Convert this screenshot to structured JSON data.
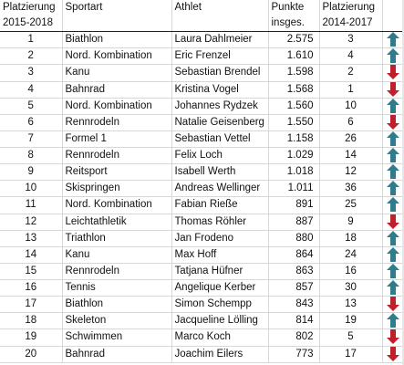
{
  "colors": {
    "up": "#2f7d8c",
    "down": "#c0202a",
    "grid": "#d7d7d7"
  },
  "headers": {
    "rank_line1": "Platzierung",
    "rank_line2": "2015-2018",
    "sport": "Sportart",
    "athlete": "Athlet",
    "points_line1": "Punkte",
    "points_line2": "insges.",
    "prev_line1": "Platzierung",
    "prev_line2": "2014-2017"
  },
  "rows": [
    {
      "rank": "1",
      "sport": "Biathlon",
      "athlete": "Laura Dahlmeier",
      "points": "2.575",
      "prev": "3",
      "trend": "up"
    },
    {
      "rank": "2",
      "sport": "Nord. Kombination",
      "athlete": "Eric Frenzel",
      "points": "1.610",
      "prev": "4",
      "trend": "up"
    },
    {
      "rank": "3",
      "sport": "Kanu",
      "athlete": "Sebastian Brendel",
      "points": "1.598",
      "prev": "2",
      "trend": "down"
    },
    {
      "rank": "4",
      "sport": "Bahnrad",
      "athlete": "Kristina Vogel",
      "points": "1.568",
      "prev": "1",
      "trend": "down"
    },
    {
      "rank": "5",
      "sport": "Nord. Kombination",
      "athlete": "Johannes Rydzek",
      "points": "1.560",
      "prev": "10",
      "trend": "up"
    },
    {
      "rank": "6",
      "sport": "Rennrodeln",
      "athlete": "Natalie Geisenberg",
      "points": "1.550",
      "prev": "6",
      "trend": "down"
    },
    {
      "rank": "7",
      "sport": "Formel 1",
      "athlete": "Sebastian Vettel",
      "points": "1.158",
      "prev": "26",
      "trend": "up"
    },
    {
      "rank": "8",
      "sport": "Rennrodeln",
      "athlete": "Felix Loch",
      "points": "1.029",
      "prev": "14",
      "trend": "up"
    },
    {
      "rank": "9",
      "sport": "Reitsport",
      "athlete": "Isabell Werth",
      "points": "1.018",
      "prev": "12",
      "trend": "up"
    },
    {
      "rank": "10",
      "sport": "Skispringen",
      "athlete": "Andreas Wellinger",
      "points": "1.011",
      "prev": "36",
      "trend": "up"
    },
    {
      "rank": "11",
      "sport": "Nord. Kombination",
      "athlete": "Fabian Rieße",
      "points": "891",
      "prev": "25",
      "trend": "up"
    },
    {
      "rank": "12",
      "sport": "Leichtathletik",
      "athlete": "Thomas Röhler",
      "points": "887",
      "prev": "9",
      "trend": "down"
    },
    {
      "rank": "13",
      "sport": "Triathlon",
      "athlete": "Jan Frodeno",
      "points": "880",
      "prev": "18",
      "trend": "up"
    },
    {
      "rank": "14",
      "sport": "Kanu",
      "athlete": "Max Hoff",
      "points": "864",
      "prev": "24",
      "trend": "up"
    },
    {
      "rank": "15",
      "sport": "Rennrodeln",
      "athlete": "Tatjana Hüfner",
      "points": "863",
      "prev": "16",
      "trend": "up"
    },
    {
      "rank": "16",
      "sport": "Tennis",
      "athlete": "Angelique Kerber",
      "points": "857",
      "prev": "30",
      "trend": "up"
    },
    {
      "rank": "17",
      "sport": "Biathlon",
      "athlete": "Simon Schempp",
      "points": "843",
      "prev": "13",
      "trend": "down"
    },
    {
      "rank": "18",
      "sport": "Skeleton",
      "athlete": "Jacqueline Lölling",
      "points": "814",
      "prev": "19",
      "trend": "up"
    },
    {
      "rank": "19",
      "sport": "Schwimmen",
      "athlete": "Marco Koch",
      "points": "802",
      "prev": "5",
      "trend": "down"
    },
    {
      "rank": "20",
      "sport": "Bahnrad",
      "athlete": "Joachim Eilers",
      "points": "773",
      "prev": "17",
      "trend": "down"
    }
  ]
}
